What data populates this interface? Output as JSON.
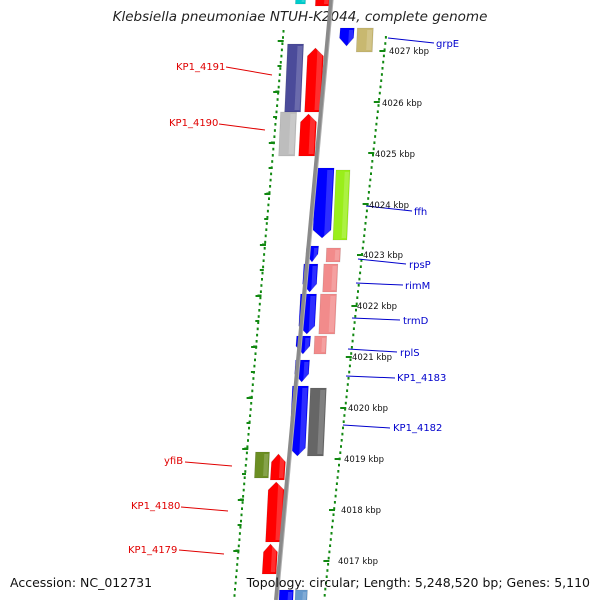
{
  "title": "Klebsiella pneumoniae NTUH-K2044, complete genome",
  "footer": {
    "accession": "Accession: NC_012731",
    "topology": "Topology: circular; Length: 5,248,520 bp; Genes: 5,110"
  },
  "scale_labels": [
    "4027 kbp",
    "4026 kbp",
    "4025 kbp",
    "4024 kbp",
    "4023 kbp",
    "4022 kbp",
    "4021 kbp",
    "4020 kbp",
    "4019 kbp",
    "4018 kbp",
    "4017 kbp"
  ],
  "left_gene_labels": [
    "KP1_4191",
    "KP1_4190",
    "yfiB",
    "KP1_4180",
    "KP1_4179"
  ],
  "right_gene_labels": [
    "grpE",
    "ffh",
    "rpsP",
    "rimM",
    "trmD",
    "rplS",
    "KP1_4183",
    "KP1_4182"
  ],
  "colors": {
    "reverse_label": "#e00000",
    "forward_label": "#0000cc",
    "forward_gene": "#0000ff",
    "reverse_gene": "#ff0000",
    "axis": "#8a8a8a",
    "ticks": "#118811"
  }
}
